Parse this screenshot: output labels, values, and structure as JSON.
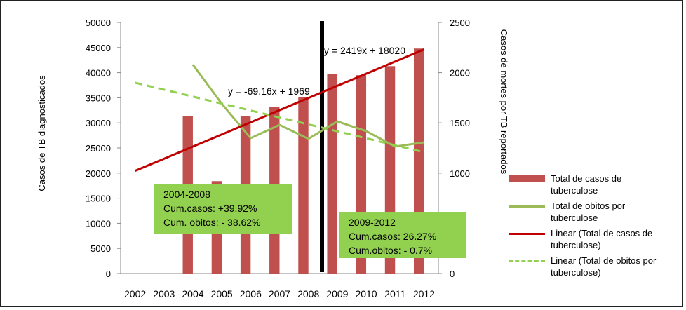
{
  "chart_data": {
    "type": "bar",
    "categories": [
      "2002",
      "2003",
      "2004",
      "2005",
      "2006",
      "2007",
      "2008",
      "2009",
      "2010",
      "2011",
      "2012"
    ],
    "y_label": "Casos de TB diagnosticados",
    "y2_label": "Casos de mortes por TB reportados",
    "ylim": [
      0,
      50000
    ],
    "yticks": [
      0,
      5000,
      10000,
      15000,
      20000,
      25000,
      30000,
      35000,
      40000,
      45000,
      50000
    ],
    "y2lim": [
      0,
      2500
    ],
    "y2ticks": [
      0,
      500,
      1000,
      1500,
      2000,
      2500
    ],
    "grid": false,
    "legend": "right",
    "series": [
      {
        "name": "Total de casos de tuberculose",
        "type": "bar",
        "color": "#c0504d",
        "axis": "y",
        "values": [
          null,
          null,
          31300,
          18400,
          31300,
          33100,
          35200,
          39700,
          39500,
          41300,
          44800
        ]
      },
      {
        "name": "Total de obitos por tuberculose",
        "type": "line",
        "color": "#9bbb59",
        "axis": "y2",
        "dashed": false,
        "values": [
          null,
          null,
          2080,
          1690,
          1348,
          1480,
          1341,
          1515,
          1418,
          1264,
          1306
        ]
      },
      {
        "name": "Linear (Total de casos de tuberculose)",
        "type": "line",
        "color": "#c00000",
        "axis": "y",
        "dashed": false,
        "values": [
          20439,
          22858,
          25277,
          27696,
          30115,
          32534,
          34953,
          37372,
          39791,
          42210,
          44629
        ]
      },
      {
        "name": "Linear (Total de obitos por tuberculose)",
        "type": "line",
        "color": "#92d050",
        "axis": "y2",
        "dashed": true,
        "values": [
          1900,
          1831,
          1762,
          1692,
          1623,
          1554,
          1485,
          1416,
          1347,
          1277,
          1208
        ]
      }
    ],
    "equations": [
      "y = 2419x + 18020",
      "y = -69.16x + 1969"
    ],
    "annotations": [
      {
        "lines": [
          "2004-2008",
          "Cum.casos: +39.92%",
          "Cum. obitos: - 38.62%"
        ]
      },
      {
        "lines": [
          "2009-2012",
          "Cum.casos: 26.27%",
          "Cum.obitos: - 0.7%"
        ]
      }
    ]
  }
}
